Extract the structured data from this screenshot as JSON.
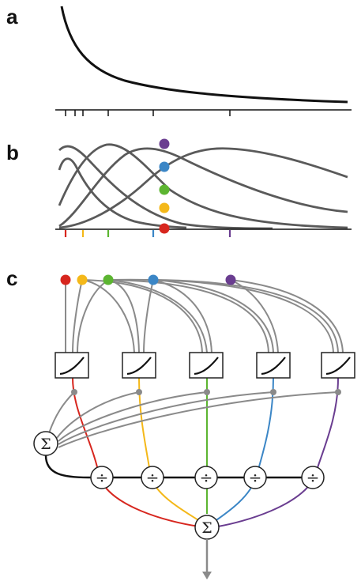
{
  "panels": {
    "a": "a",
    "b": "b",
    "c": "c"
  },
  "symbols": {
    "sum": "Σ",
    "divide": "÷"
  },
  "colors": {
    "red": "#d7261e",
    "yellow": "#f4b819",
    "green": "#5cb531",
    "blue": "#3b86c6",
    "purple": "#6a3d90",
    "dark_gray": "#5a5a5a",
    "mid_gray": "#8a8a8a",
    "black": "#111111"
  },
  "channel_order": [
    "red",
    "yellow",
    "green",
    "blue",
    "purple"
  ],
  "icons": {
    "nonlinearity_box": "nonlinearity-box-icon",
    "sum_node": "sum-node-icon",
    "divide_node": "divide-node-icon",
    "output_arrow": "arrow-down-icon"
  }
}
